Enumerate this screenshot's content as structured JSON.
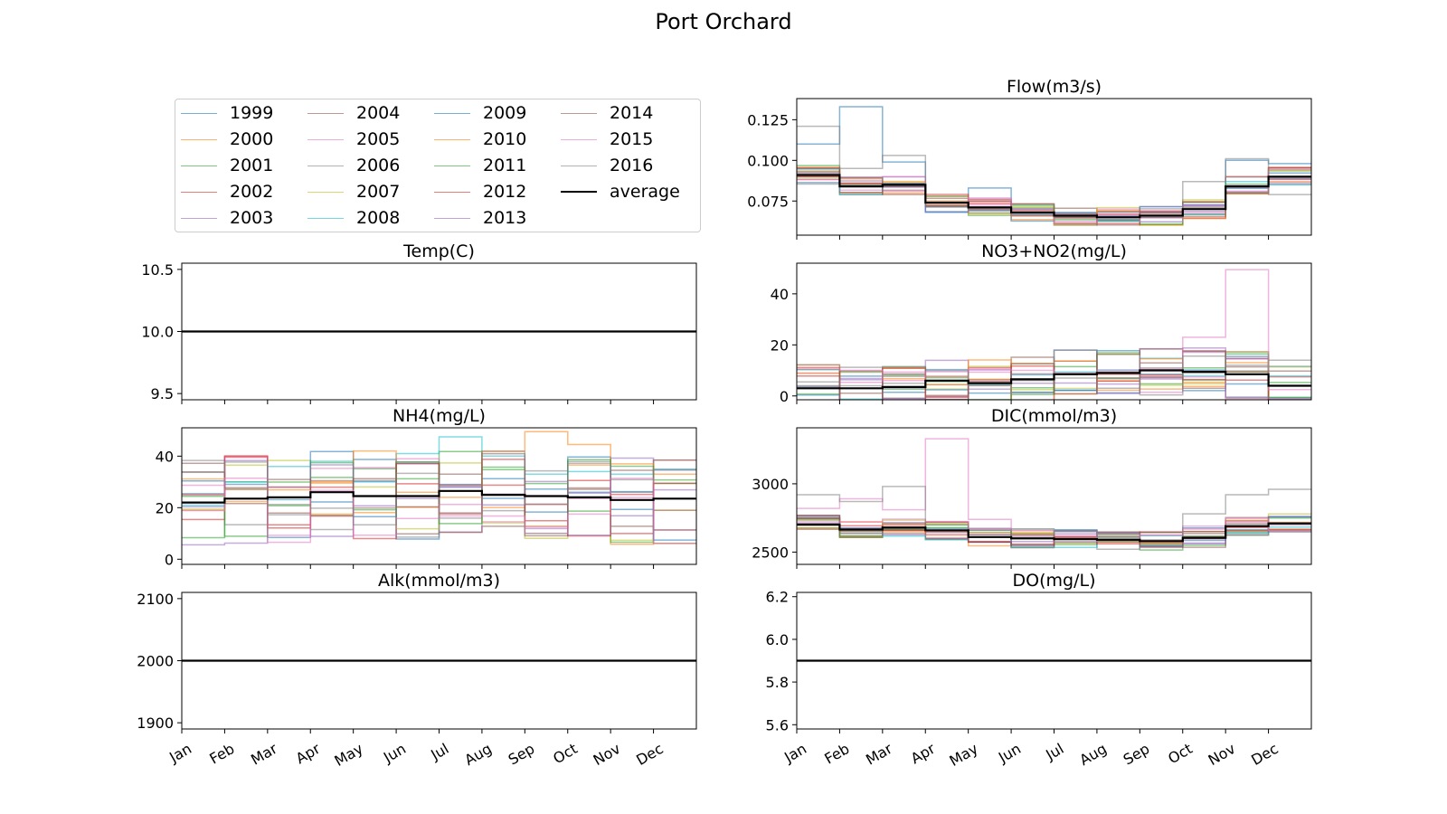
{
  "title": "Port Orchard",
  "months": [
    "Jan",
    "Feb",
    "Mar",
    "Apr",
    "May",
    "Jun",
    "Jul",
    "Aug",
    "Sep",
    "Oct",
    "Nov",
    "Dec"
  ],
  "colors": {
    "years": [
      "#1f77b4",
      "#ff7f0e",
      "#2ca02c",
      "#d62728",
      "#9467bd",
      "#8c564b",
      "#e377c2",
      "#7f7f7f",
      "#bcbd22",
      "#17becf"
    ],
    "average": "#000000"
  },
  "legend": {
    "entries": [
      "1999",
      "2000",
      "2001",
      "2002",
      "2003",
      "2004",
      "2005",
      "2006",
      "2007",
      "2008",
      "2009",
      "2010",
      "2011",
      "2012",
      "2013",
      "2014",
      "2015",
      "2016",
      "average"
    ]
  },
  "chart_data": [
    {
      "type": "line",
      "title": "Flow(m3/s)",
      "x": [
        "Jan",
        "Feb",
        "Mar",
        "Apr",
        "May",
        "Jun",
        "Jul",
        "Aug",
        "Sep",
        "Oct",
        "Nov",
        "Dec"
      ],
      "ylim": [
        0.054,
        0.138
      ],
      "yticks": [
        "0.075",
        "0.100",
        "0.125"
      ],
      "yticks_values": [
        0.075,
        0.1,
        0.125
      ],
      "spread": 0.12,
      "series": [
        {
          "name": "average",
          "values": [
            0.091,
            0.084,
            0.085,
            0.074,
            0.071,
            0.068,
            0.066,
            0.065,
            0.066,
            0.07,
            0.084,
            0.09
          ]
        },
        {
          "name": "1999",
          "values": [
            0.11,
            0.133,
            0.099,
            0.078,
            0.083,
            0.07,
            0.068,
            0.066,
            0.068,
            0.072,
            0.1,
            0.098
          ]
        },
        {
          "name": "2016",
          "values": [
            0.121,
            0.095,
            0.103,
            0.072,
            0.069,
            0.066,
            0.065,
            0.064,
            0.065,
            0.087,
            0.101,
            0.079
          ]
        }
      ]
    },
    {
      "type": "line",
      "title": "Temp(C)",
      "x": [
        "Jan",
        "Feb",
        "Mar",
        "Apr",
        "May",
        "Jun",
        "Jul",
        "Aug",
        "Sep",
        "Oct",
        "Nov",
        "Dec"
      ],
      "ylim": [
        9.45,
        10.55
      ],
      "yticks": [
        "9.5",
        "10.0",
        "10.5"
      ],
      "yticks_values": [
        9.5,
        10.0,
        10.5
      ],
      "spread": 0,
      "series": [
        {
          "name": "average",
          "values": [
            10,
            10,
            10,
            10,
            10,
            10,
            10,
            10,
            10,
            10,
            10,
            10
          ]
        }
      ]
    },
    {
      "type": "line",
      "title": "NO3+NO2(mg/L)",
      "x": [
        "Jan",
        "Feb",
        "Mar",
        "Apr",
        "May",
        "Jun",
        "Jul",
        "Aug",
        "Sep",
        "Oct",
        "Nov",
        "Dec"
      ],
      "ylim": [
        -1.5,
        52
      ],
      "yticks": [
        "0",
        "20",
        "40"
      ],
      "yticks_values": [
        0,
        20,
        40
      ],
      "spread": 0.3,
      "series": [
        {
          "name": "average",
          "values": [
            3,
            3,
            3.5,
            6,
            5,
            6.5,
            8.5,
            9,
            10,
            9.5,
            8.5,
            4
          ]
        },
        {
          "name": "2015",
          "values": [
            10.5,
            10,
            6,
            9.5,
            10.5,
            10,
            9,
            10,
            10.5,
            23,
            49.5,
            2.5
          ]
        },
        {
          "name": "2006",
          "values": [
            5.5,
            4,
            5,
            4.5,
            5,
            6,
            7,
            3,
            11,
            9,
            12,
            14
          ]
        }
      ]
    },
    {
      "type": "line",
      "title": "NH4(mg/L)",
      "x": [
        "Jan",
        "Feb",
        "Mar",
        "Apr",
        "May",
        "Jun",
        "Jul",
        "Aug",
        "Sep",
        "Oct",
        "Nov",
        "Dec"
      ],
      "ylim": [
        -2,
        51
      ],
      "yticks": [
        "0",
        "20",
        "40"
      ],
      "yticks_values": [
        0,
        20,
        40
      ],
      "spread": 0.55,
      "series": [
        {
          "name": "average",
          "values": [
            22,
            23.5,
            24,
            26,
            24.5,
            24.5,
            26.5,
            25,
            24.5,
            24,
            23,
            23.5
          ]
        },
        {
          "name": "2008",
          "values": [
            21,
            30,
            36,
            38,
            30,
            41,
            47.5,
            40,
            33,
            34,
            33,
            35
          ]
        },
        {
          "name": "2010",
          "values": [
            19,
            27,
            28,
            30,
            42,
            26,
            24,
            42,
            49.5,
            44.5,
            37,
            33
          ]
        }
      ]
    },
    {
      "type": "line",
      "title": "DIC(mmol/m3)",
      "x": [
        "Jan",
        "Feb",
        "Mar",
        "Apr",
        "May",
        "Jun",
        "Jul",
        "Aug",
        "Sep",
        "Oct",
        "Nov",
        "Dec"
      ],
      "ylim": [
        2410,
        3410
      ],
      "yticks": [
        "2500",
        "3000"
      ],
      "yticks_values": [
        2500,
        3000
      ],
      "spread": 0.12,
      "series": [
        {
          "name": "average",
          "values": [
            2700,
            2665,
            2680,
            2660,
            2610,
            2600,
            2595,
            2590,
            2580,
            2605,
            2690,
            2710
          ]
        },
        {
          "name": "2005",
          "values": [
            2820,
            2890,
            2810,
            3330,
            2740,
            2610,
            2620,
            2590,
            2560,
            2690,
            2720,
            2760
          ]
        },
        {
          "name": "2016",
          "values": [
            2920,
            2870,
            2980,
            2700,
            2660,
            2620,
            2650,
            2600,
            2590,
            2780,
            2920,
            2960
          ]
        }
      ]
    },
    {
      "type": "line",
      "title": "Alk(mmol/m3)",
      "x": [
        "Jan",
        "Feb",
        "Mar",
        "Apr",
        "May",
        "Jun",
        "Jul",
        "Aug",
        "Sep",
        "Oct",
        "Nov",
        "Dec"
      ],
      "ylim": [
        1890,
        2110
      ],
      "yticks": [
        "1900",
        "2000",
        "2100"
      ],
      "yticks_values": [
        1900,
        2000,
        2100
      ],
      "spread": 0,
      "series": [
        {
          "name": "average",
          "values": [
            2000,
            2000,
            2000,
            2000,
            2000,
            2000,
            2000,
            2000,
            2000,
            2000,
            2000,
            2000
          ]
        }
      ]
    },
    {
      "type": "line",
      "title": "DO(mg/L)",
      "x": [
        "Jan",
        "Feb",
        "Mar",
        "Apr",
        "May",
        "Jun",
        "Jul",
        "Aug",
        "Sep",
        "Oct",
        "Nov",
        "Dec"
      ],
      "ylim": [
        5.58,
        6.22
      ],
      "yticks": [
        "5.6",
        "5.8",
        "6.0",
        "6.2"
      ],
      "yticks_values": [
        5.6,
        5.8,
        6.0,
        6.2
      ],
      "spread": 0,
      "series": [
        {
          "name": "average",
          "values": [
            5.9,
            5.9,
            5.9,
            5.9,
            5.9,
            5.9,
            5.9,
            5.9,
            5.9,
            5.9,
            5.9,
            5.9
          ]
        }
      ]
    }
  ]
}
